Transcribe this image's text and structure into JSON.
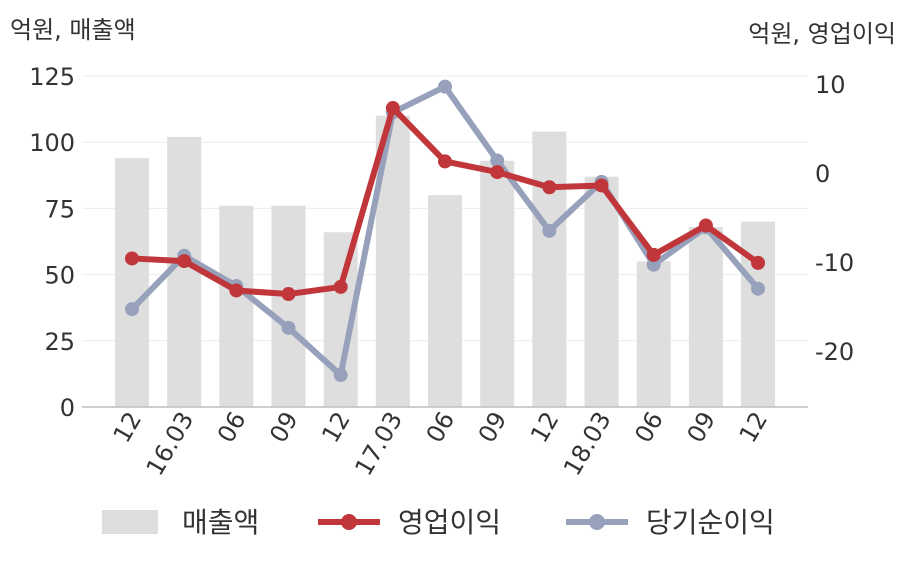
{
  "chart_data": {
    "type": "bar",
    "left_unit_label": "억원, 매출액",
    "right_unit_label": "억원, 영업이익",
    "categories": [
      "12",
      "16.03",
      "06",
      "09",
      "12",
      "17.03",
      "06",
      "09",
      "12",
      "18.03",
      "06",
      "09",
      "12"
    ],
    "left_axis": {
      "ylim": [
        0,
        125
      ],
      "ticks": [
        0,
        25,
        50,
        75,
        100,
        125
      ]
    },
    "right_axis": {
      "ylim": [
        -26,
        11
      ],
      "ticks": [
        10,
        0,
        -10,
        -20
      ]
    },
    "grid": true,
    "legend_position": "bottom",
    "series": [
      {
        "name": "매출액",
        "type": "bar",
        "axis": "left",
        "color": "#dedede",
        "values": [
          94,
          102,
          76,
          76,
          66,
          110,
          80,
          93,
          104,
          87,
          55,
          68,
          70
        ]
      },
      {
        "name": "영업이익",
        "type": "line",
        "axis": "right",
        "color": "#c0363a",
        "values": [
          -9.6,
          -9.9,
          -13.2,
          -13.6,
          -12.8,
          7.3,
          1.3,
          0.1,
          -1.6,
          -1.4,
          -9.2,
          -5.9,
          -10.1
        ]
      },
      {
        "name": "당기순이익",
        "type": "line",
        "axis": "right",
        "color": "#97a1bb",
        "values": [
          -15.3,
          -9.3,
          -12.7,
          -17.4,
          -22.7,
          6.8,
          9.7,
          1.4,
          -6.5,
          -1.0,
          -10.3,
          -6.1,
          -13.0
        ]
      }
    ]
  }
}
